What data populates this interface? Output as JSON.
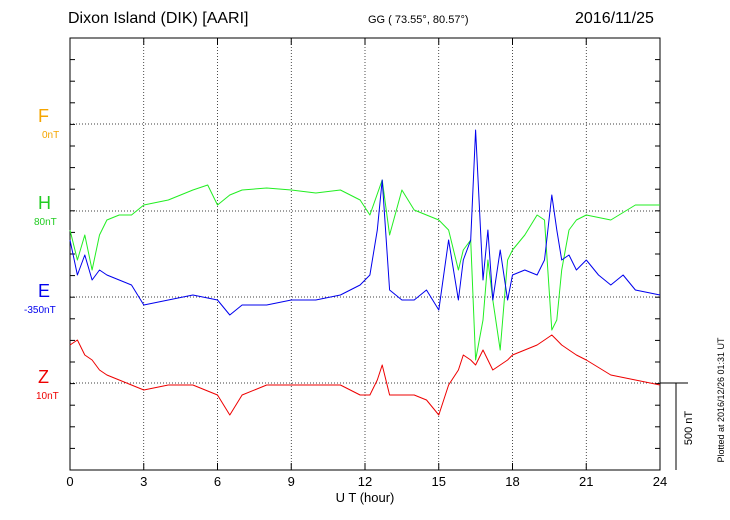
{
  "header": {
    "station": "Dixon Island (DIK)  [AARI]",
    "coords": "GG ( 73.55°,  80.57°)",
    "date": "2016/11/25"
  },
  "plotted_note": "Plotted at 2016/12/26 01:31  UT",
  "chart_data": {
    "type": "line",
    "xlabel": "U T (hour)",
    "xlim": [
      0,
      24
    ],
    "x_ticks": [
      "0",
      "3",
      "6",
      "9",
      "12",
      "15",
      "18",
      "21",
      "24"
    ],
    "scale_bar": "500 nT",
    "series": [
      {
        "name": "F",
        "baseline": "0nT",
        "color": "#f5a500",
        "values": []
      },
      {
        "name": "H",
        "baseline": "80nT",
        "color": "#22ee22",
        "values": [
          [
            0,
            230
          ],
          [
            0.3,
            260
          ],
          [
            0.6,
            235
          ],
          [
            0.9,
            270
          ],
          [
            1.2,
            235
          ],
          [
            1.5,
            220
          ],
          [
            2,
            215
          ],
          [
            2.5,
            215
          ],
          [
            3,
            205
          ],
          [
            4,
            200
          ],
          [
            5,
            190
          ],
          [
            5.6,
            185
          ],
          [
            6,
            205
          ],
          [
            6.5,
            195
          ],
          [
            7,
            190
          ],
          [
            8,
            188
          ],
          [
            9,
            190
          ],
          [
            10,
            193
          ],
          [
            11,
            190
          ],
          [
            11.8,
            200
          ],
          [
            12.2,
            215
          ],
          [
            12.7,
            180
          ],
          [
            13,
            235
          ],
          [
            13.5,
            190
          ],
          [
            14,
            210
          ],
          [
            14.5,
            215
          ],
          [
            15,
            220
          ],
          [
            15.4,
            230
          ],
          [
            15.8,
            270
          ],
          [
            16,
            250
          ],
          [
            16.3,
            240
          ],
          [
            16.5,
            360
          ],
          [
            16.8,
            320
          ],
          [
            17,
            260
          ],
          [
            17.2,
            300
          ],
          [
            17.5,
            350
          ],
          [
            17.8,
            260
          ],
          [
            18,
            250
          ],
          [
            18.5,
            235
          ],
          [
            19,
            215
          ],
          [
            19.3,
            220
          ],
          [
            19.6,
            330
          ],
          [
            19.8,
            320
          ],
          [
            20,
            270
          ],
          [
            20.3,
            230
          ],
          [
            20.6,
            220
          ],
          [
            21,
            215
          ],
          [
            22,
            220
          ],
          [
            23,
            205
          ],
          [
            24,
            205
          ]
        ]
      },
      {
        "name": "E",
        "baseline": "-350nT",
        "color": "#0000ee",
        "values": [
          [
            0,
            240
          ],
          [
            0.3,
            275
          ],
          [
            0.6,
            255
          ],
          [
            0.9,
            280
          ],
          [
            1.2,
            270
          ],
          [
            1.5,
            275
          ],
          [
            2,
            280
          ],
          [
            2.5,
            285
          ],
          [
            3,
            305
          ],
          [
            4,
            300
          ],
          [
            5,
            295
          ],
          [
            6,
            300
          ],
          [
            6.5,
            315
          ],
          [
            7,
            305
          ],
          [
            8,
            305
          ],
          [
            9,
            300
          ],
          [
            10,
            300
          ],
          [
            11,
            295
          ],
          [
            11.8,
            285
          ],
          [
            12.2,
            275
          ],
          [
            12.5,
            230
          ],
          [
            12.7,
            180
          ],
          [
            13,
            290
          ],
          [
            13.5,
            300
          ],
          [
            14,
            300
          ],
          [
            14.5,
            290
          ],
          [
            15,
            310
          ],
          [
            15.4,
            240
          ],
          [
            15.8,
            300
          ],
          [
            16,
            260
          ],
          [
            16.3,
            240
          ],
          [
            16.5,
            130
          ],
          [
            16.8,
            280
          ],
          [
            17,
            230
          ],
          [
            17.2,
            300
          ],
          [
            17.5,
            250
          ],
          [
            17.8,
            300
          ],
          [
            18,
            275
          ],
          [
            18.5,
            270
          ],
          [
            19,
            275
          ],
          [
            19.3,
            260
          ],
          [
            19.6,
            195
          ],
          [
            19.8,
            230
          ],
          [
            20,
            260
          ],
          [
            20.3,
            255
          ],
          [
            20.6,
            270
          ],
          [
            21,
            260
          ],
          [
            21.5,
            275
          ],
          [
            22,
            285
          ],
          [
            22.5,
            275
          ],
          [
            23,
            290
          ],
          [
            24,
            295
          ]
        ]
      },
      {
        "name": "Z",
        "baseline": "10nT",
        "color": "#ee0000",
        "values": [
          [
            0,
            345
          ],
          [
            0.3,
            340
          ],
          [
            0.6,
            355
          ],
          [
            0.9,
            360
          ],
          [
            1.2,
            370
          ],
          [
            1.5,
            375
          ],
          [
            2,
            380
          ],
          [
            2.5,
            385
          ],
          [
            3,
            390
          ],
          [
            4,
            385
          ],
          [
            5,
            385
          ],
          [
            6,
            395
          ],
          [
            6.5,
            415
          ],
          [
            7,
            395
          ],
          [
            8,
            385
          ],
          [
            9,
            385
          ],
          [
            10,
            385
          ],
          [
            11,
            385
          ],
          [
            11.8,
            395
          ],
          [
            12.2,
            395
          ],
          [
            12.5,
            380
          ],
          [
            12.7,
            365
          ],
          [
            13,
            395
          ],
          [
            13.5,
            395
          ],
          [
            14,
            395
          ],
          [
            14.5,
            400
          ],
          [
            15,
            415
          ],
          [
            15.4,
            385
          ],
          [
            15.8,
            370
          ],
          [
            16,
            355
          ],
          [
            16.3,
            360
          ],
          [
            16.5,
            365
          ],
          [
            16.8,
            350
          ],
          [
            17,
            360
          ],
          [
            17.2,
            370
          ],
          [
            17.5,
            365
          ],
          [
            17.8,
            360
          ],
          [
            18,
            355
          ],
          [
            18.5,
            350
          ],
          [
            19,
            345
          ],
          [
            19.3,
            340
          ],
          [
            19.6,
            335
          ],
          [
            19.8,
            340
          ],
          [
            20,
            345
          ],
          [
            20.3,
            350
          ],
          [
            20.6,
            355
          ],
          [
            21,
            360
          ],
          [
            22,
            375
          ],
          [
            23,
            380
          ],
          [
            24,
            385
          ]
        ]
      }
    ]
  }
}
